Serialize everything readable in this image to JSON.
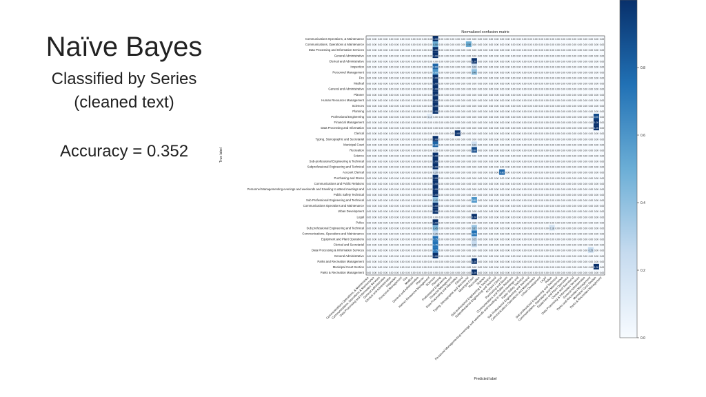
{
  "slide": {
    "title": "Naïve Bayes",
    "subtitle_line1": "Classified by Series",
    "subtitle_line2": "(cleaned text)",
    "accuracy": "Accuracy = 0.352"
  },
  "chart_data": {
    "type": "heatmap",
    "title": "Normalized confusion matrix",
    "xlabel": "Predicted label",
    "ylabel": "True label",
    "labels": [
      "Communications Operations, & Maintenance",
      "Communications, Operations & Maintenance",
      "Data Processing and Information Services",
      "General Administrative",
      "Clerical and Administrative",
      "Inspection",
      "Personnel Management",
      "Fire",
      "Medical",
      "General and Administrative",
      "Planner",
      "Human Resources Management",
      "Sciences",
      "Planning",
      "Professional Engineering",
      "Financial Management",
      "Data Processing and Information",
      "Clerical",
      "Typing, Stenographic and Secretarial",
      "Municipal Court",
      "Recreation",
      "Science",
      "Sub-professional Engineering & Technical",
      "Subprofessional Engineering and Technical",
      "Account Clerical",
      "Purchasing and Stores",
      "Communications and Public Relations",
      "Personnel Managementing evenings and weekends and traveling to attend meetings and",
      "Public Safety Technical",
      "Sub Professional Engineering and Technical",
      "Communications Operations and Maintenance",
      "Urban Development",
      "Legal",
      "Police",
      "Sub professional Engineering and Technical",
      "Communications, Operations and Maintenance",
      "Equipment and Plant Operations",
      "Clerical and Secretarial",
      "Data Processing & Information Services",
      "General Administrative",
      "Parks and Recreation Management",
      "Municipal Court Section",
      "Parks & Recreation Management"
    ],
    "nonzero_cells": [
      {
        "row": 0,
        "col": 12,
        "value": 1.0
      },
      {
        "row": 1,
        "col": 12,
        "value": 0.5
      },
      {
        "row": 1,
        "col": 18,
        "value": 0.5
      },
      {
        "row": 2,
        "col": 12,
        "value": 1.0
      },
      {
        "row": 3,
        "col": 12,
        "value": 1.0
      },
      {
        "row": 4,
        "col": 19,
        "value": 1.0
      },
      {
        "row": 5,
        "col": 12,
        "value": 0.8
      },
      {
        "row": 5,
        "col": 19,
        "value": 0.2
      },
      {
        "row": 6,
        "col": 12,
        "value": 0.6
      },
      {
        "row": 6,
        "col": 19,
        "value": 0.4
      },
      {
        "row": 7,
        "col": 12,
        "value": 1.0
      },
      {
        "row": 8,
        "col": 12,
        "value": 1.0
      },
      {
        "row": 9,
        "col": 12,
        "value": 1.0
      },
      {
        "row": 10,
        "col": 12,
        "value": 1.0
      },
      {
        "row": 11,
        "col": 12,
        "value": 1.0
      },
      {
        "row": 12,
        "col": 12,
        "value": 1.0
      },
      {
        "row": 13,
        "col": 12,
        "value": 1.0
      },
      {
        "row": 14,
        "col": 11,
        "value": 0.1
      },
      {
        "row": 14,
        "col": 41,
        "value": 0.9
      },
      {
        "row": 15,
        "col": 41,
        "value": 1.0
      },
      {
        "row": 16,
        "col": 41,
        "value": 1.0
      },
      {
        "row": 17,
        "col": 16,
        "value": 1.0
      },
      {
        "row": 18,
        "col": 12,
        "value": 1.0
      },
      {
        "row": 19,
        "col": 12,
        "value": 0.8
      },
      {
        "row": 19,
        "col": 19,
        "value": 0.2
      },
      {
        "row": 20,
        "col": 12,
        "value": 0.1
      },
      {
        "row": 20,
        "col": 19,
        "value": 0.9
      },
      {
        "row": 21,
        "col": 12,
        "value": 1.0
      },
      {
        "row": 22,
        "col": 12,
        "value": 1.0
      },
      {
        "row": 23,
        "col": 12,
        "value": 1.0
      },
      {
        "row": 24,
        "col": 24,
        "value": 0.8
      },
      {
        "row": 24,
        "col": 12,
        "value": 0.2
      },
      {
        "row": 25,
        "col": 12,
        "value": 1.0
      },
      {
        "row": 26,
        "col": 12,
        "value": 1.0
      },
      {
        "row": 27,
        "col": 12,
        "value": 1.0
      },
      {
        "row": 28,
        "col": 12,
        "value": 1.0
      },
      {
        "row": 29,
        "col": 12,
        "value": 0.4
      },
      {
        "row": 29,
        "col": 19,
        "value": 0.6
      },
      {
        "row": 30,
        "col": 12,
        "value": 1.0
      },
      {
        "row": 31,
        "col": 12,
        "value": 1.0
      },
      {
        "row": 32,
        "col": 19,
        "value": 1.0
      },
      {
        "row": 33,
        "col": 12,
        "value": 1.0
      },
      {
        "row": 34,
        "col": 12,
        "value": 0.45
      },
      {
        "row": 34,
        "col": 19,
        "value": 0.37
      },
      {
        "row": 34,
        "col": 33,
        "value": 0.18
      },
      {
        "row": 35,
        "col": 12,
        "value": 0.25
      },
      {
        "row": 35,
        "col": 19,
        "value": 0.75
      },
      {
        "row": 36,
        "col": 12,
        "value": 0.75
      },
      {
        "row": 36,
        "col": 19,
        "value": 0.25
      },
      {
        "row": 37,
        "col": 12,
        "value": 0.75
      },
      {
        "row": 37,
        "col": 19,
        "value": 0.25
      },
      {
        "row": 38,
        "col": 12,
        "value": 0.75
      },
      {
        "row": 38,
        "col": 40,
        "value": 0.25
      },
      {
        "row": 39,
        "col": 12,
        "value": 1.0
      },
      {
        "row": 40,
        "col": 19,
        "value": 1.0
      },
      {
        "row": 41,
        "col": 41,
        "value": 1.0
      },
      {
        "row": 42,
        "col": 19,
        "value": 1.0
      }
    ],
    "colorbar": {
      "ticks": [
        "0.8",
        "0.6",
        "0.4",
        "0.2",
        "0.0"
      ],
      "range": [
        0,
        1
      ],
      "low_color": "#f7fbff",
      "high_color": "#08306b"
    }
  }
}
